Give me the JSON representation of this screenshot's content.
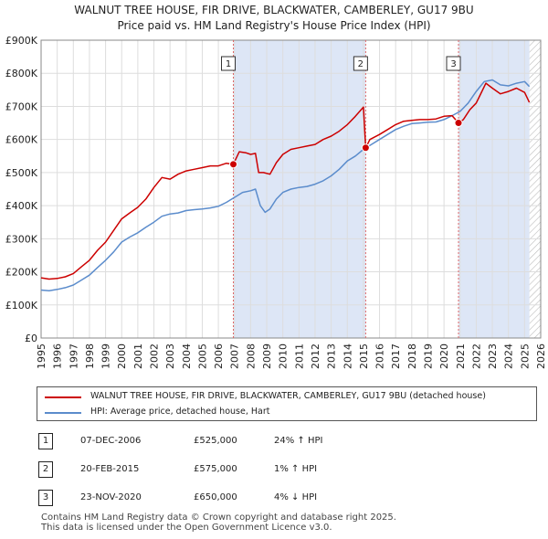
{
  "title_line1": "WALNUT TREE HOUSE, FIR DRIVE, BLACKWATER, CAMBERLEY, GU17 9BU",
  "title_line2": "Price paid vs. HM Land Registry's House Price Index (HPI)",
  "colors": {
    "property": "#cc0000",
    "hpi": "#5b8ccc",
    "shade": "#dde6f6",
    "grid": "#dddddd"
  },
  "chart_data": {
    "type": "line",
    "xlim": [
      1995,
      2026
    ],
    "ylim": [
      0,
      900000
    ],
    "y_ticks": [
      {
        "value": 0,
        "label": "£0"
      },
      {
        "value": 100000,
        "label": "£100K"
      },
      {
        "value": 200000,
        "label": "£200K"
      },
      {
        "value": 300000,
        "label": "£300K"
      },
      {
        "value": 400000,
        "label": "£400K"
      },
      {
        "value": 500000,
        "label": "£500K"
      },
      {
        "value": 600000,
        "label": "£600K"
      },
      {
        "value": 700000,
        "label": "£700K"
      },
      {
        "value": 800000,
        "label": "£800K"
      },
      {
        "value": 900000,
        "label": "£900K"
      }
    ],
    "x_ticks": [
      1995,
      1996,
      1997,
      1998,
      1999,
      2000,
      2001,
      2002,
      2003,
      2004,
      2005,
      2006,
      2007,
      2008,
      2009,
      2010,
      2011,
      2012,
      2013,
      2014,
      2015,
      2016,
      2017,
      2018,
      2019,
      2020,
      2021,
      2022,
      2023,
      2024,
      2025,
      2026
    ],
    "shaded_regions": [
      [
        2006.93,
        2015.14
      ],
      [
        2020.9,
        2025.3
      ]
    ],
    "hatched_from": 2025.3,
    "series": [
      {
        "name": "WALNUT TREE HOUSE, FIR DRIVE, BLACKWATER, CAMBERLEY, GU17 9BU (detached house)",
        "color": "#cc0000",
        "x": [
          1995,
          1995.5,
          1996,
          1996.5,
          1997,
          1997.5,
          1998,
          1998.5,
          1999,
          1999.5,
          2000,
          2000.5,
          2001,
          2001.5,
          2002,
          2002.5,
          2003,
          2003.5,
          2004,
          2004.5,
          2005,
          2005.5,
          2006,
          2006.5,
          2006.93,
          2007.3,
          2007.7,
          2008,
          2008.3,
          2008.5,
          2008.8,
          2009.2,
          2009.6,
          2010,
          2010.5,
          2011,
          2011.5,
          2012,
          2012.5,
          2013,
          2013.5,
          2014,
          2014.5,
          2015.0,
          2015.14,
          2015.4,
          2016,
          2016.5,
          2017,
          2017.5,
          2018,
          2018.5,
          2019,
          2019.5,
          2020,
          2020.5,
          2020.9,
          2021.2,
          2021.6,
          2022,
          2022.3,
          2022.6,
          2023,
          2023.5,
          2024,
          2024.5,
          2025,
          2025.3
        ],
        "y": [
          182000,
          178000,
          180000,
          185000,
          195000,
          215000,
          235000,
          265000,
          290000,
          325000,
          360000,
          378000,
          395000,
          420000,
          455000,
          485000,
          480000,
          495000,
          505000,
          510000,
          515000,
          520000,
          520000,
          528000,
          525000,
          563000,
          560000,
          555000,
          558000,
          500000,
          500000,
          495000,
          530000,
          555000,
          570000,
          575000,
          580000,
          585000,
          600000,
          610000,
          625000,
          645000,
          670000,
          698000,
          575000,
          600000,
          615000,
          630000,
          645000,
          655000,
          658000,
          660000,
          660000,
          662000,
          670000,
          672000,
          650000,
          660000,
          690000,
          710000,
          740000,
          770000,
          755000,
          738000,
          745000,
          755000,
          742000,
          712000
        ]
      },
      {
        "name": "HPI: Average price, detached house, Hart",
        "color": "#5b8ccc",
        "x": [
          1995,
          1995.5,
          1996,
          1996.5,
          1997,
          1997.5,
          1998,
          1998.5,
          1999,
          1999.5,
          2000,
          2000.5,
          2001,
          2001.5,
          2002,
          2002.5,
          2003,
          2003.5,
          2004,
          2004.5,
          2005,
          2005.5,
          2006,
          2006.5,
          2007,
          2007.5,
          2008,
          2008.3,
          2008.6,
          2008.9,
          2009.2,
          2009.6,
          2010,
          2010.5,
          2011,
          2011.5,
          2012,
          2012.5,
          2013,
          2013.5,
          2014,
          2014.5,
          2015,
          2015.5,
          2016,
          2016.5,
          2017,
          2017.5,
          2018,
          2018.5,
          2019,
          2019.5,
          2020,
          2020.5,
          2021,
          2021.5,
          2022,
          2022.5,
          2023,
          2023.5,
          2024,
          2024.5,
          2025,
          2025.3
        ],
        "y": [
          145000,
          143000,
          147000,
          152000,
          160000,
          175000,
          190000,
          213000,
          235000,
          260000,
          290000,
          305000,
          318000,
          335000,
          350000,
          368000,
          375000,
          378000,
          385000,
          388000,
          390000,
          393000,
          398000,
          410000,
          425000,
          440000,
          445000,
          450000,
          400000,
          380000,
          390000,
          420000,
          440000,
          450000,
          455000,
          458000,
          465000,
          475000,
          490000,
          510000,
          535000,
          550000,
          570000,
          585000,
          600000,
          615000,
          630000,
          640000,
          648000,
          650000,
          652000,
          653000,
          660000,
          672000,
          685000,
          710000,
          745000,
          775000,
          780000,
          765000,
          762000,
          770000,
          775000,
          760000
        ]
      }
    ],
    "sales": [
      {
        "id": "1",
        "x": 2006.93,
        "y": 525000,
        "date": "07-DEC-2006",
        "price": "£525,000",
        "hpi": "24% ↑ HPI"
      },
      {
        "id": "2",
        "x": 2015.14,
        "y": 575000,
        "date": "20-FEB-2015",
        "price": "£575,000",
        "hpi": "1% ↑ HPI"
      },
      {
        "id": "3",
        "x": 2020.9,
        "y": 650000,
        "date": "23-NOV-2020",
        "price": "£650,000",
        "hpi": "4% ↓ HPI"
      }
    ]
  },
  "legend": {
    "property": "WALNUT TREE HOUSE, FIR DRIVE, BLACKWATER, CAMBERLEY, GU17 9BU (detached house)",
    "hpi": "HPI: Average price, detached house, Hart"
  },
  "footer": {
    "line1": "Contains HM Land Registry data © Crown copyright and database right 2025.",
    "line2": "This data is licensed under the Open Government Licence v3.0."
  }
}
